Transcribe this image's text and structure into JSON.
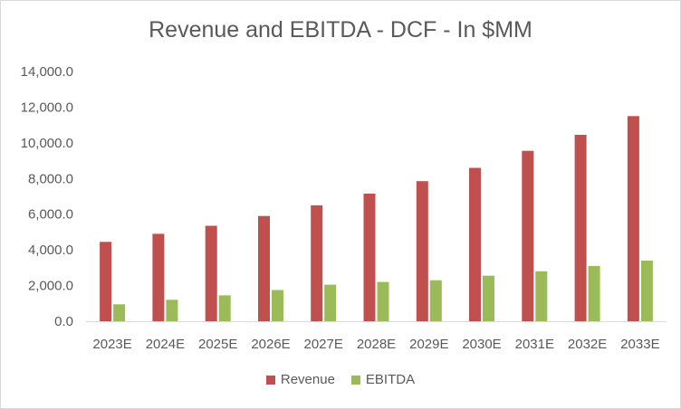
{
  "chart_data": {
    "type": "bar",
    "title": "Revenue and EBITDA - DCF - In $MM",
    "xlabel": "",
    "ylabel": "",
    "ylim": [
      0,
      14000
    ],
    "yticks": [
      "0.0",
      "2,000.0",
      "4,000.0",
      "6,000.0",
      "8,000.0",
      "10,000.0",
      "12,000.0",
      "14,000.0"
    ],
    "ytick_values": [
      0,
      2000,
      4000,
      6000,
      8000,
      10000,
      12000,
      14000
    ],
    "categories": [
      "2023E",
      "2024E",
      "2025E",
      "2026E",
      "2027E",
      "2028E",
      "2029E",
      "2030E",
      "2031E",
      "2032E",
      "2033E"
    ],
    "series": [
      {
        "name": "Revenue",
        "color": "#c0504d",
        "values": [
          4450,
          4900,
          5350,
          5900,
          6500,
          7150,
          7850,
          8600,
          9550,
          10450,
          11500
        ]
      },
      {
        "name": "EBITDA",
        "color": "#9bbb59",
        "values": [
          950,
          1200,
          1450,
          1750,
          2050,
          2200,
          2300,
          2550,
          2800,
          3100,
          3400
        ]
      }
    ],
    "grid": false,
    "legend": "bottom-center"
  }
}
